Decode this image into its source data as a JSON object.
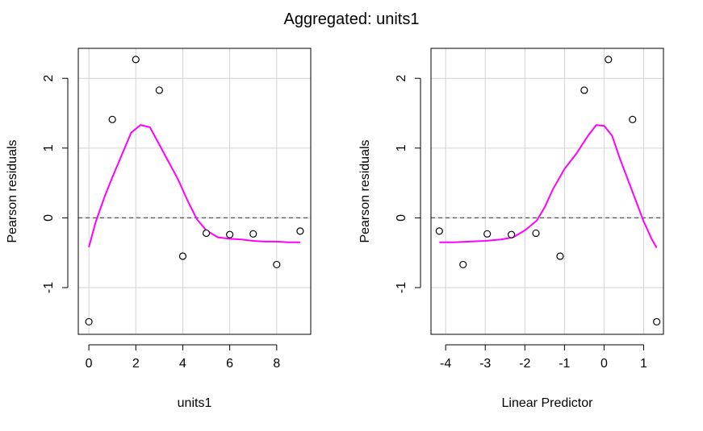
{
  "figure_title": "Aggregated: units1",
  "chart_data": [
    {
      "type": "scatter",
      "xlabel": "units1",
      "ylabel": "Pearson residuals",
      "xlim": [
        -0.45,
        9.45
      ],
      "ylim": [
        -1.67,
        2.43
      ],
      "xticks": [
        0,
        2,
        4,
        6,
        8
      ],
      "yticks": [
        -1,
        0,
        1,
        2
      ],
      "grid": true,
      "reference_line": {
        "y": 0,
        "style": "dashed"
      },
      "points": {
        "x": [
          0,
          1,
          2,
          3,
          4,
          5,
          6,
          7,
          8,
          9
        ],
        "y": [
          -1.49,
          1.41,
          2.27,
          1.83,
          -0.55,
          -0.22,
          -0.24,
          -0.23,
          -0.67,
          -0.19
        ]
      },
      "smooth": {
        "color": "#ff00ff",
        "x": [
          0,
          0.3,
          0.7,
          1.0,
          1.4,
          1.8,
          2.2,
          2.6,
          3.0,
          3.4,
          3.8,
          4.2,
          4.6,
          5.0,
          5.5,
          6.0,
          6.5,
          7.0,
          7.5,
          8.0,
          8.5,
          9.0
        ],
        "y": [
          -0.42,
          -0.05,
          0.33,
          0.58,
          0.9,
          1.22,
          1.33,
          1.3,
          1.05,
          0.8,
          0.55,
          0.25,
          -0.02,
          -0.18,
          -0.28,
          -0.3,
          -0.31,
          -0.33,
          -0.34,
          -0.34,
          -0.35,
          -0.35
        ]
      }
    },
    {
      "type": "scatter",
      "xlabel": "Linear Predictor",
      "ylabel": "Pearson residuals",
      "xlim": [
        -4.37,
        1.5
      ],
      "ylim": [
        -1.67,
        2.43
      ],
      "xticks": [
        -4,
        -3,
        -2,
        -1,
        0,
        1
      ],
      "yticks": [
        -1,
        0,
        1,
        2
      ],
      "grid": true,
      "reference_line": {
        "y": 0,
        "style": "dashed"
      },
      "points": {
        "x": [
          -4.16,
          -3.56,
          -2.95,
          -2.34,
          -1.72,
          -1.11,
          -0.5,
          0.11,
          0.72,
          1.33
        ],
        "y": [
          -0.19,
          -0.67,
          -0.23,
          -0.24,
          -0.22,
          -0.55,
          1.83,
          2.27,
          1.41,
          -1.49
        ]
      },
      "smooth": {
        "color": "#ff00ff",
        "x": [
          -4.16,
          -3.8,
          -3.4,
          -3.0,
          -2.6,
          -2.3,
          -2.0,
          -1.7,
          -1.5,
          -1.3,
          -1.0,
          -0.7,
          -0.4,
          -0.2,
          0.0,
          0.2,
          0.4,
          0.6,
          0.8,
          1.0,
          1.2,
          1.33
        ],
        "y": [
          -0.35,
          -0.35,
          -0.34,
          -0.33,
          -0.31,
          -0.28,
          -0.18,
          -0.04,
          0.15,
          0.4,
          0.7,
          0.92,
          1.18,
          1.33,
          1.32,
          1.18,
          0.85,
          0.55,
          0.25,
          -0.05,
          -0.3,
          -0.43
        ]
      }
    }
  ]
}
